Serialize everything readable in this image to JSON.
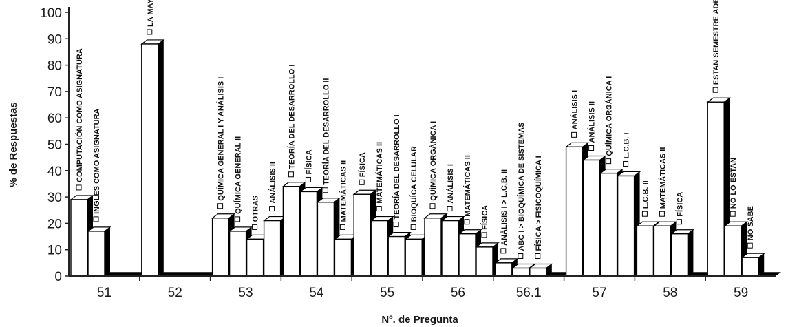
{
  "chart_data": {
    "type": "bar",
    "xlabel": "Nº. de Pregunta",
    "ylabel": "% de Respuestas",
    "ylim": [
      0,
      100
    ],
    "yticks": [
      0,
      10,
      20,
      30,
      40,
      50,
      60,
      70,
      80,
      90,
      100
    ],
    "grid": false,
    "legend": "none",
    "colors": {
      "bar_face": "#ffffff",
      "bar_shadow": "#000000",
      "axis": "#222222"
    },
    "groups": [
      {
        "category": "51",
        "bars": [
          {
            "label": "COMPUTACIÓN COMO ASIGNATURA",
            "value": 29
          },
          {
            "label": "INGLES COMO ASIGNATURA",
            "value": 17
          }
        ]
      },
      {
        "category": "52",
        "bars": [
          {
            "label": "LA MAYORÍA DE LASASIGNATURAS",
            "value": 88
          }
        ]
      },
      {
        "category": "53",
        "bars": [
          {
            "label": "QUÍMICA GENERAL I Y ANÁLISIS I",
            "value": 22
          },
          {
            "label": "QUÍMICA GENERAL II",
            "value": 17
          },
          {
            "label": "OTRAS",
            "value": 14
          },
          {
            "label": "ANÁLISIS II",
            "value": 21
          }
        ]
      },
      {
        "category": "54",
        "bars": [
          {
            "label": "TEORÍA DEL DESARROLLO I",
            "value": 34
          },
          {
            "label": "FÍSICA",
            "value": 32
          },
          {
            "label": "TEORÍA DEL DESARROLLO II",
            "value": 28
          },
          {
            "label": "MATEMÁTICAS II",
            "value": 14
          }
        ]
      },
      {
        "category": "55",
        "bars": [
          {
            "label": "FÍSICA",
            "value": 31
          },
          {
            "label": "MATEMÁTICAS II",
            "value": 21
          },
          {
            "label": "TEORÍA DEL DESARROLLO I",
            "value": 15
          },
          {
            "label": "BIOQUÍCA CELULAR",
            "value": 14
          }
        ]
      },
      {
        "category": "56",
        "bars": [
          {
            "label": "QUÍMICA ORGÁNICA I",
            "value": 22
          },
          {
            "label": "ANÁLISIS I",
            "value": 21
          },
          {
            "label": "MATEMÁTICAS II",
            "value": 16
          },
          {
            "label": "FÍSICA",
            "value": 11
          }
        ]
      },
      {
        "category": "56.1",
        "bars": [
          {
            "label": "ANÁLISIS I > L.C.B. II",
            "value": 5
          },
          {
            "label": "ABC I > BIOQUÍMICA DE SISTEMAS",
            "value": 3
          },
          {
            "label": "FÍSICA > FISICOQUÍMICA I",
            "value": 3
          }
        ]
      },
      {
        "category": "57",
        "bars": [
          {
            "label": "ANÁLISIS I",
            "value": 49
          },
          {
            "label": "ANÁLISIS II",
            "value": 44
          },
          {
            "label": "QUÍMICA ORGÁNICA I",
            "value": 39
          },
          {
            "label": "L.C.B. I",
            "value": 38
          }
        ]
      },
      {
        "category": "58",
        "bars": [
          {
            "label": "L.C.B. II",
            "value": 19
          },
          {
            "label": "MATEMÁTICAS II",
            "value": 19
          },
          {
            "label": "FÍSICA",
            "value": 16
          }
        ]
      },
      {
        "category": "59",
        "bars": [
          {
            "label": "ESTAN SEMESTRE ADECUADO",
            "value": 66
          },
          {
            "label": "NO LO ESTAN",
            "value": 19
          },
          {
            "label": "NO SABE",
            "value": 7
          }
        ]
      }
    ]
  }
}
